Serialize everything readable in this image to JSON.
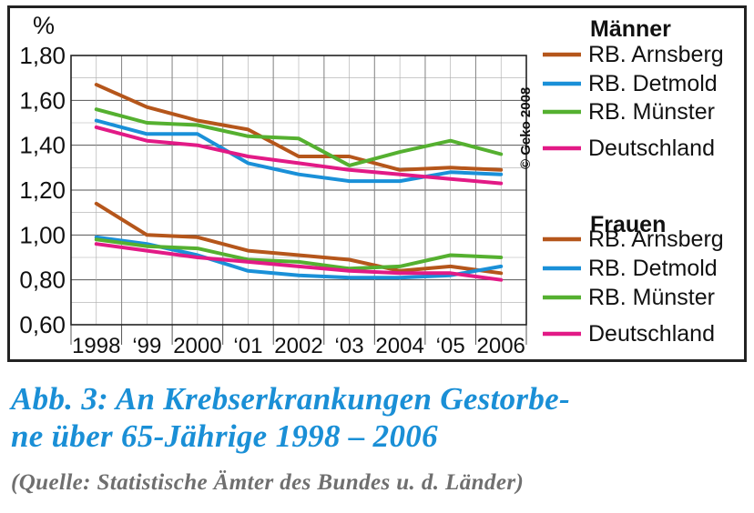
{
  "chart_data": {
    "type": "line",
    "y_unit": "%",
    "ylim": [
      0.6,
      1.8
    ],
    "yticks": [
      "0,60",
      "0,80",
      "1,00",
      "1,20",
      "1,40",
      "1,60",
      "1,80"
    ],
    "x": [
      1998,
      1999,
      2000,
      2001,
      2002,
      2003,
      2004,
      2005,
      2006
    ],
    "xtick_labels": [
      "1998",
      "‘99",
      "2000",
      "‘01",
      "2002",
      "‘03",
      "2004",
      "‘05",
      "2006"
    ],
    "grid": true,
    "legend_position": "right",
    "copyright": "© Geko 2008",
    "groups": [
      {
        "title": "Männer",
        "series": [
          {
            "name": "RB. Arnsberg",
            "color": "#b5561b",
            "values": [
              1.67,
              1.57,
              1.51,
              1.47,
              1.35,
              1.35,
              1.29,
              1.3,
              1.29
            ]
          },
          {
            "name": "RB. Detmold",
            "color": "#1a90d8",
            "values": [
              1.51,
              1.45,
              1.45,
              1.32,
              1.27,
              1.24,
              1.24,
              1.28,
              1.27
            ]
          },
          {
            "name": "RB. Münster",
            "color": "#55b030",
            "values": [
              1.56,
              1.5,
              1.49,
              1.44,
              1.43,
              1.31,
              1.37,
              1.42,
              1.36
            ]
          },
          {
            "name": "Deutschland",
            "color": "#e21a86",
            "values": [
              1.48,
              1.42,
              1.4,
              1.35,
              1.32,
              1.29,
              1.27,
              1.25,
              1.23
            ]
          }
        ]
      },
      {
        "title": "Frauen",
        "series": [
          {
            "name": "RB. Arnsberg",
            "color": "#b5561b",
            "values": [
              1.14,
              1.0,
              0.99,
              0.93,
              0.91,
              0.89,
              0.84,
              0.86,
              0.83
            ]
          },
          {
            "name": "RB. Detmold",
            "color": "#1a90d8",
            "values": [
              0.99,
              0.96,
              0.91,
              0.84,
              0.82,
              0.81,
              0.81,
              0.82,
              0.86
            ]
          },
          {
            "name": "RB. Münster",
            "color": "#55b030",
            "values": [
              0.98,
              0.95,
              0.94,
              0.89,
              0.88,
              0.85,
              0.86,
              0.91,
              0.9
            ]
          },
          {
            "name": "Deutschland",
            "color": "#e21a86",
            "values": [
              0.96,
              0.93,
              0.9,
              0.88,
              0.86,
              0.84,
              0.83,
              0.83,
              0.8
            ]
          }
        ]
      }
    ]
  },
  "caption": {
    "title_line1": "Abb. 3: An Krebserkrankungen Gestorbe-",
    "title_line2": "ne über 65-Jährige 1998 – 2006",
    "source": "(Quelle: Statistische Ämter des Bundes u. d. Länder)"
  }
}
